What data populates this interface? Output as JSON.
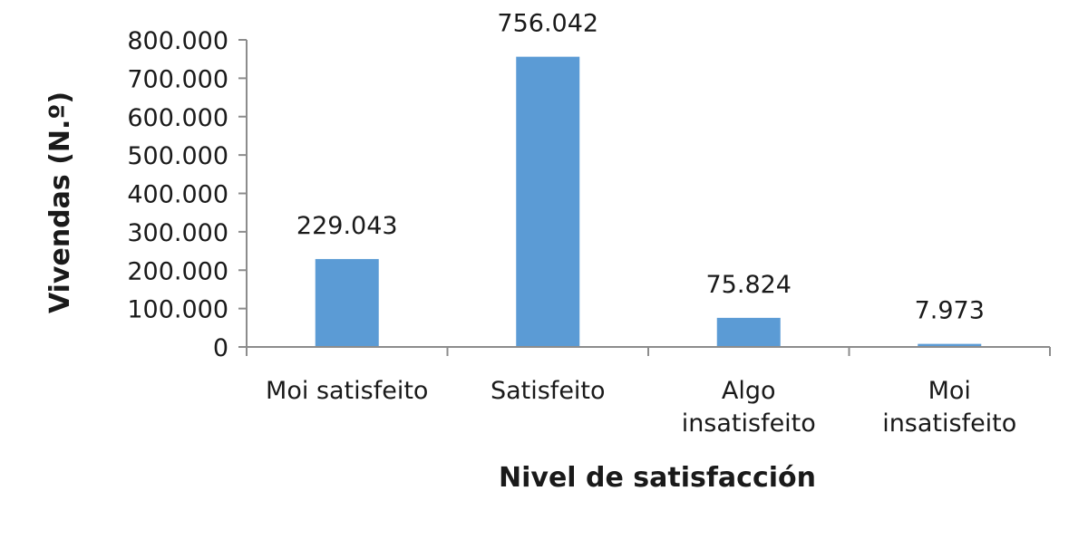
{
  "chart_data": {
    "type": "bar",
    "title": "",
    "xlabel": "Nivel de satisfacción",
    "ylabel": "Vivendas (N.º)",
    "categories": [
      [
        "Moi satisfeito"
      ],
      [
        "Satisfeito"
      ],
      [
        "Algo",
        "insatisfeito"
      ],
      [
        "Moi",
        "insatisfeito"
      ]
    ],
    "values": [
      229043,
      756042,
      75824,
      7973
    ],
    "value_labels": [
      "229.043",
      "756.042",
      "75.824",
      "7.973"
    ],
    "ylim": [
      0,
      800000
    ],
    "yticks": [
      0,
      100000,
      200000,
      300000,
      400000,
      500000,
      600000,
      700000,
      800000
    ],
    "ytick_labels": [
      "0",
      "100.000",
      "200.000",
      "300.000",
      "400.000",
      "500.000",
      "600.000",
      "700.000",
      "800.000"
    ],
    "grid": false,
    "legend": "none",
    "bar_color": "#5b9bd5"
  }
}
